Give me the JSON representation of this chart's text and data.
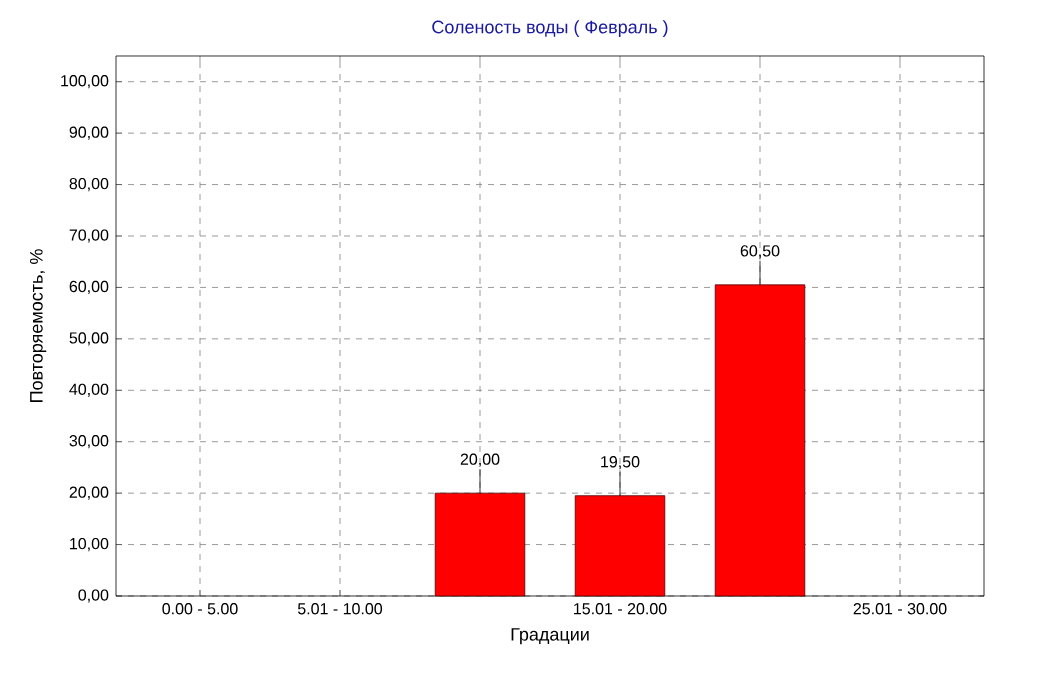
{
  "chart_data": {
    "type": "bar",
    "title": "Соленость воды    ( Февраль )",
    "xlabel": "Градации",
    "ylabel": "Повторяемость, %",
    "categories": [
      "0.00 - 5.00",
      "5.01 - 10.00",
      null,
      "15.01 - 20.00",
      null,
      "25.01 - 30.00"
    ],
    "values": [
      null,
      null,
      20,
      19.5,
      60.5,
      null
    ],
    "value_labels": [
      null,
      null,
      "20,00",
      "19,50",
      "60,50",
      null
    ],
    "color": "#ff0000",
    "ylim": [
      0,
      105
    ],
    "yticks": [
      {
        "value": 0,
        "label": "0,00"
      },
      {
        "value": 10,
        "label": "10,00"
      },
      {
        "value": 20,
        "label": "20,00"
      },
      {
        "value": 30,
        "label": "30,00"
      },
      {
        "value": 40,
        "label": "40,00"
      },
      {
        "value": 50,
        "label": "50,00"
      },
      {
        "value": 60,
        "label": "60,00"
      },
      {
        "value": 70,
        "label": "70,00"
      },
      {
        "value": 80,
        "label": "80,00"
      },
      {
        "value": 90,
        "label": "90,00"
      },
      {
        "value": 100,
        "label": "100,00"
      }
    ],
    "grid": true
  }
}
